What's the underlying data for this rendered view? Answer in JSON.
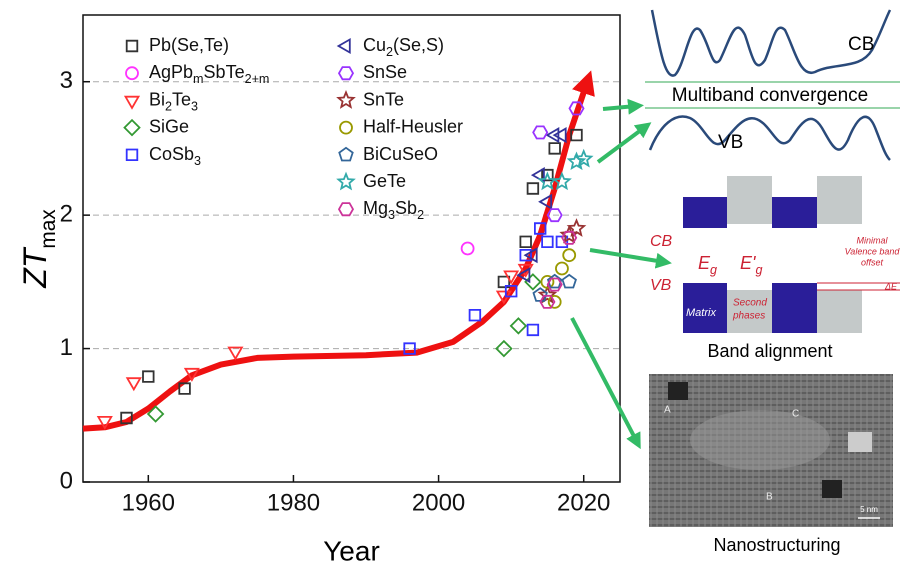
{
  "chart_data": {
    "type": "scatter",
    "x_label": "Year",
    "y_label": "ZTmax",
    "xlim": [
      1951,
      2025
    ],
    "ylim": [
      0,
      3.5
    ],
    "xticks": [
      1960,
      1980,
      2000,
      2020
    ],
    "yticks": [
      0,
      1,
      2,
      3
    ],
    "grid": true,
    "series": [
      {
        "name": "Pb(Se,Te)",
        "color": "#333333",
        "marker": "square",
        "x": [
          1957,
          1960,
          1965,
          2009,
          2012,
          2013,
          2015,
          2016,
          2019
        ],
        "values": [
          0.48,
          0.79,
          0.7,
          1.5,
          1.8,
          2.2,
          2.3,
          2.5,
          2.6
        ]
      },
      {
        "name": "AgPbmSbTe2+m",
        "color": "#ff33ff",
        "marker": "circle",
        "x": [
          2004
        ],
        "values": [
          1.75
        ]
      },
      {
        "name": "Bi2Te3",
        "color": "#ff3333",
        "marker": "triangle-down",
        "x": [
          1954,
          1958,
          1966,
          1972,
          2009,
          2010,
          2012
        ],
        "values": [
          0.46,
          0.75,
          0.82,
          0.98,
          1.4,
          1.55,
          1.6
        ]
      },
      {
        "name": "SiGe",
        "color": "#339933",
        "marker": "diamond",
        "x": [
          1961,
          2009,
          2011,
          2013
        ],
        "values": [
          0.51,
          1.0,
          1.17,
          1.5
        ]
      },
      {
        "name": "CoSb3",
        "color": "#3333ff",
        "marker": "square",
        "x": [
          1996,
          2005,
          2010,
          2012,
          2013,
          2014,
          2015,
          2017
        ],
        "values": [
          1.0,
          1.25,
          1.43,
          1.7,
          1.14,
          1.9,
          1.8,
          1.8
        ]
      },
      {
        "name": "Cu2(Se,S)",
        "color": "#333399",
        "marker": "triangle-left",
        "x": [
          2012,
          2013,
          2014,
          2015,
          2016,
          2017
        ],
        "values": [
          1.55,
          1.7,
          2.3,
          2.1,
          2.6,
          2.6
        ]
      },
      {
        "name": "SnSe",
        "color": "#9933ff",
        "marker": "hexagon",
        "x": [
          2014,
          2016,
          2019
        ],
        "values": [
          2.62,
          2.0,
          2.8
        ]
      },
      {
        "name": "SnTe",
        "color": "#993333",
        "marker": "star",
        "x": [
          2015,
          2018,
          2019
        ],
        "values": [
          1.4,
          1.85,
          1.9
        ]
      },
      {
        "name": "Half-Heusler",
        "color": "#999900",
        "marker": "circle",
        "x": [
          2015,
          2016,
          2017,
          2018
        ],
        "values": [
          1.5,
          1.35,
          1.6,
          1.7
        ]
      },
      {
        "name": "BiCuSeO",
        "color": "#336699",
        "marker": "pentagon",
        "x": [
          2014,
          2016,
          2018
        ],
        "values": [
          1.4,
          1.5,
          1.5
        ]
      },
      {
        "name": "GeTe",
        "color": "#33aaaa",
        "marker": "star",
        "x": [
          2015,
          2017,
          2019,
          2020
        ],
        "values": [
          2.25,
          2.25,
          2.4,
          2.42
        ]
      },
      {
        "name": "Mg3Sb2",
        "color": "#cc3399",
        "marker": "hexagon",
        "x": [
          2015,
          2016,
          2018
        ],
        "values": [
          1.35,
          1.48,
          1.83
        ]
      }
    ],
    "trend": {
      "color": "#ee1111",
      "x": [
        1951,
        1954,
        1957,
        1960,
        1963,
        1966,
        1970,
        1975,
        1980,
        1990,
        1997,
        2002,
        2006,
        2009,
        2012,
        2014,
        2016,
        2018,
        2020.5
      ],
      "values": [
        0.4,
        0.41,
        0.45,
        0.55,
        0.68,
        0.8,
        0.88,
        0.93,
        0.94,
        0.95,
        0.97,
        1.05,
        1.2,
        1.35,
        1.6,
        1.85,
        2.2,
        2.6,
        3.0
      ]
    }
  },
  "panels": {
    "multiband": {
      "cb": "CB",
      "vb": "VB",
      "caption": "Multiband convergence"
    },
    "band_alignment": {
      "cb": "CB",
      "vb": "VB",
      "eg": "Eg",
      "eg2": "E'g",
      "matrix": "Matrix",
      "second": [
        "Second",
        "phases"
      ],
      "offset": [
        "Minimal",
        "Valence band",
        "offset"
      ],
      "delta": "ΔE",
      "caption": "Band alignment"
    },
    "nanostructuring": {
      "a": "A",
      "b": "B",
      "c": "C",
      "scale": "5 nm",
      "caption": "Nanostructuring"
    }
  }
}
